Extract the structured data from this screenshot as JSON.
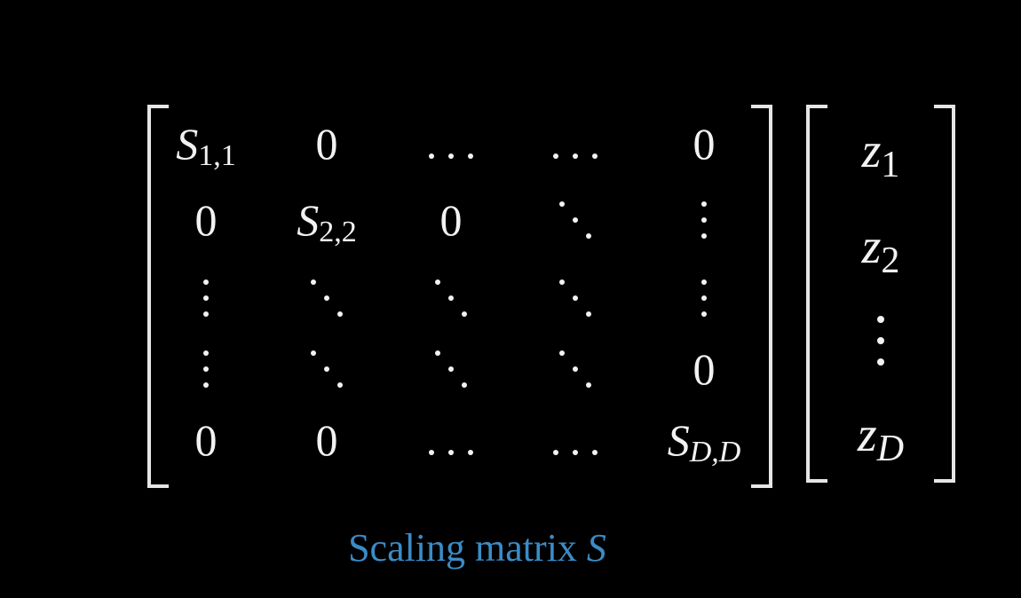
{
  "matrix": {
    "rows": [
      [
        {
          "type": "entry",
          "base": "S",
          "sub": "1,1"
        },
        {
          "type": "text",
          "text": "0"
        },
        {
          "type": "hdots"
        },
        {
          "type": "hdots"
        },
        {
          "type": "text",
          "text": "0"
        }
      ],
      [
        {
          "type": "text",
          "text": "0"
        },
        {
          "type": "entry",
          "base": "S",
          "sub": "2,2"
        },
        {
          "type": "text",
          "text": "0"
        },
        {
          "type": "ddots"
        },
        {
          "type": "vdots"
        }
      ],
      [
        {
          "type": "vdots"
        },
        {
          "type": "ddots"
        },
        {
          "type": "ddots"
        },
        {
          "type": "ddots"
        },
        {
          "type": "vdots"
        }
      ],
      [
        {
          "type": "vdots"
        },
        {
          "type": "ddots"
        },
        {
          "type": "ddots"
        },
        {
          "type": "ddots"
        },
        {
          "type": "text",
          "text": "0"
        }
      ],
      [
        {
          "type": "text",
          "text": "0"
        },
        {
          "type": "text",
          "text": "0"
        },
        {
          "type": "hdots"
        },
        {
          "type": "hdots"
        },
        {
          "type": "entry",
          "base": "S",
          "sub": "D,D",
          "sub_italic": true
        }
      ]
    ]
  },
  "vector": {
    "entries": [
      {
        "type": "entry",
        "base": "z",
        "sub": "1"
      },
      {
        "type": "entry",
        "base": "z",
        "sub": "2"
      },
      {
        "type": "vdots"
      },
      {
        "type": "entry",
        "base": "z",
        "sub": "D",
        "sub_italic": true
      }
    ]
  },
  "caption": {
    "text": "Scaling matrix ",
    "symbol": "S"
  },
  "colors": {
    "background": "#000000",
    "foreground": "#f2f2f2",
    "caption": "#3a8cc7"
  }
}
